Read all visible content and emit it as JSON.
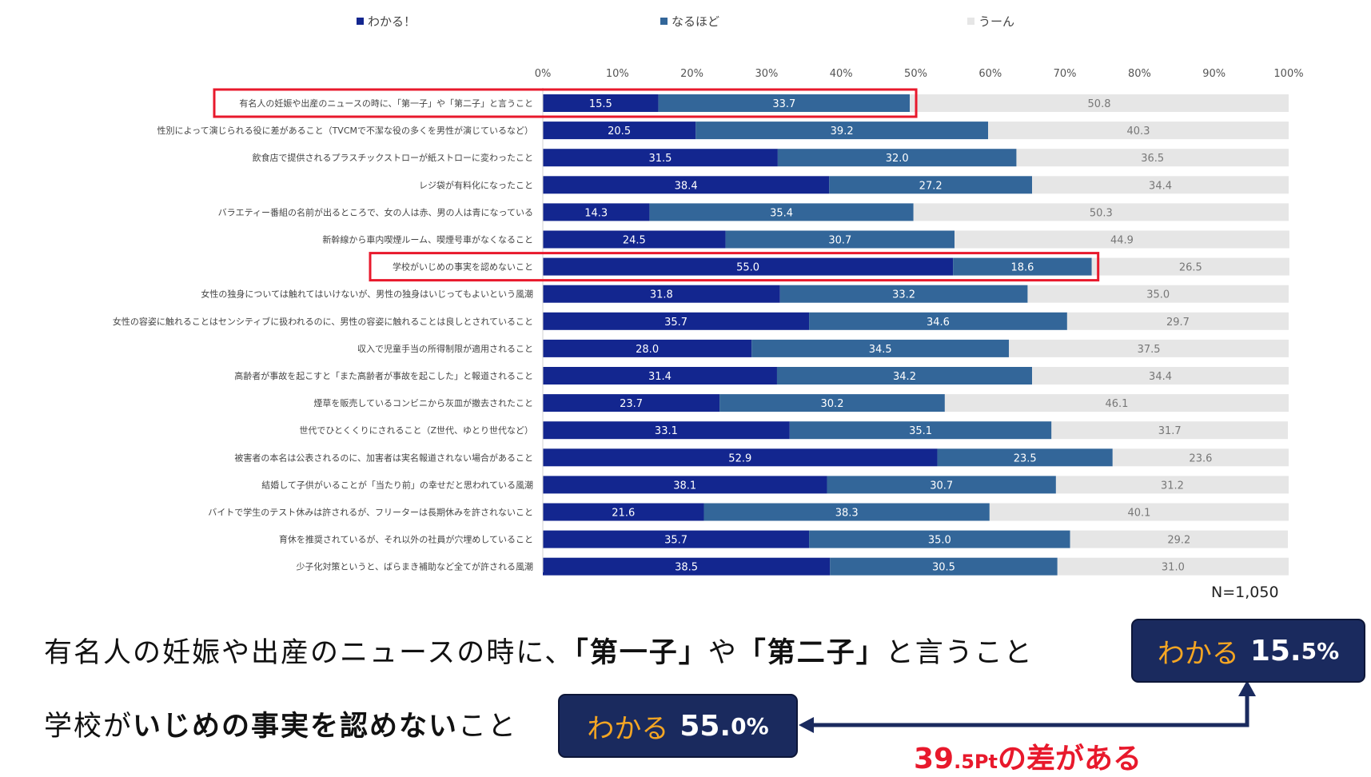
{
  "legend": [
    {
      "label": "わかる！",
      "color": "#13268f"
    },
    {
      "label": "なるほど",
      "color": "#336699"
    },
    {
      "label": "うーん",
      "color": "#e6e6e6"
    }
  ],
  "colors": {
    "highlight": "#e8192c",
    "badge": "#1a2a5e",
    "badge_label": "#f5a623"
  },
  "chart_data": {
    "type": "bar",
    "orientation": "horizontal-stacked-100",
    "xlim": [
      0,
      100
    ],
    "ticks": [
      "0%",
      "10%",
      "20%",
      "30%",
      "40%",
      "50%",
      "60%",
      "70%",
      "80%",
      "90%",
      "100%"
    ],
    "categories": [
      "有名人の妊娠や出産のニュースの時に、「第一子」や「第二子」と言うこと",
      "性別によって演じられる役に差があること（TVCMで不潔な役の多くを男性が演じているなど）",
      "飲食店で提供されるプラスチックストローが紙ストローに変わったこと",
      "レジ袋が有料化になったこと",
      "バラエティー番組の名前が出るところで、女の人は赤、男の人は青になっている",
      "新幹線から車内喫煙ルーム、喫煙号車がなくなること",
      "学校がいじめの事実を認めないこと",
      "女性の独身については触れてはいけないが、男性の独身はいじってもよいという風潮",
      "女性の容姿に触れることはセンシティブに扱われるのに、男性の容姿に触れることは良しとされていること",
      "収入で児童手当の所得制限が適用されること",
      "高齢者が事故を起こすと「また高齢者が事故を起こした」と報道されること",
      "煙草を販売しているコンビニから灰皿が撤去されたこと",
      "世代でひとくくりにされること（Z世代、ゆとり世代など）",
      "被害者の本名は公表されるのに、加害者は実名報道されない場合があること",
      "結婚して子供がいることが「当たり前」の幸せだと思われている風潮",
      "バイトで学生のテスト休みは許されるが、フリーターは長期休みを許されないこと",
      "育休を推奨されているが、それ以外の社員が穴埋めしていること",
      "少子化対策というと、ばらまき補助など全てが許される風潮"
    ],
    "series": [
      {
        "name": "わかる！",
        "values": [
          15.5,
          20.5,
          31.5,
          38.4,
          14.3,
          24.5,
          55.0,
          31.8,
          35.7,
          28.0,
          31.4,
          23.7,
          33.1,
          52.9,
          38.1,
          21.6,
          35.7,
          38.5
        ]
      },
      {
        "name": "なるほど",
        "values": [
          33.7,
          39.2,
          32.0,
          27.2,
          35.4,
          30.7,
          18.6,
          33.2,
          34.6,
          34.5,
          34.2,
          30.2,
          35.1,
          23.5,
          30.7,
          38.3,
          35.0,
          30.5
        ]
      },
      {
        "name": "うーん",
        "values": [
          50.8,
          40.3,
          36.5,
          34.4,
          50.3,
          44.9,
          26.5,
          35.0,
          29.7,
          37.5,
          34.4,
          46.1,
          31.7,
          23.6,
          31.2,
          40.1,
          29.2,
          31.0
        ]
      }
    ],
    "highlighted_rows": [
      0,
      6
    ],
    "note": "N=1,050"
  },
  "annotation": {
    "row1_text_pre": "有名人の妊娠や出産のニュースの時に、",
    "row1_text_b1": "「第一子」",
    "row1_text_mid": "や",
    "row1_text_b2": "「第二子」",
    "row1_text_post": "と言うこと",
    "row1_badge_label": "わかる",
    "row1_badge_num": "15.",
    "row1_badge_pct": "5%",
    "row2_text_pre": "学校が",
    "row2_text_b": "いじめの事実を認めない",
    "row2_text_post": "こと",
    "row2_badge_label": "わかる",
    "row2_badge_num": "55.",
    "row2_badge_pct": "0%",
    "diff_big": "39",
    "diff_small": ".5Pt",
    "diff_post": "の差がある"
  }
}
